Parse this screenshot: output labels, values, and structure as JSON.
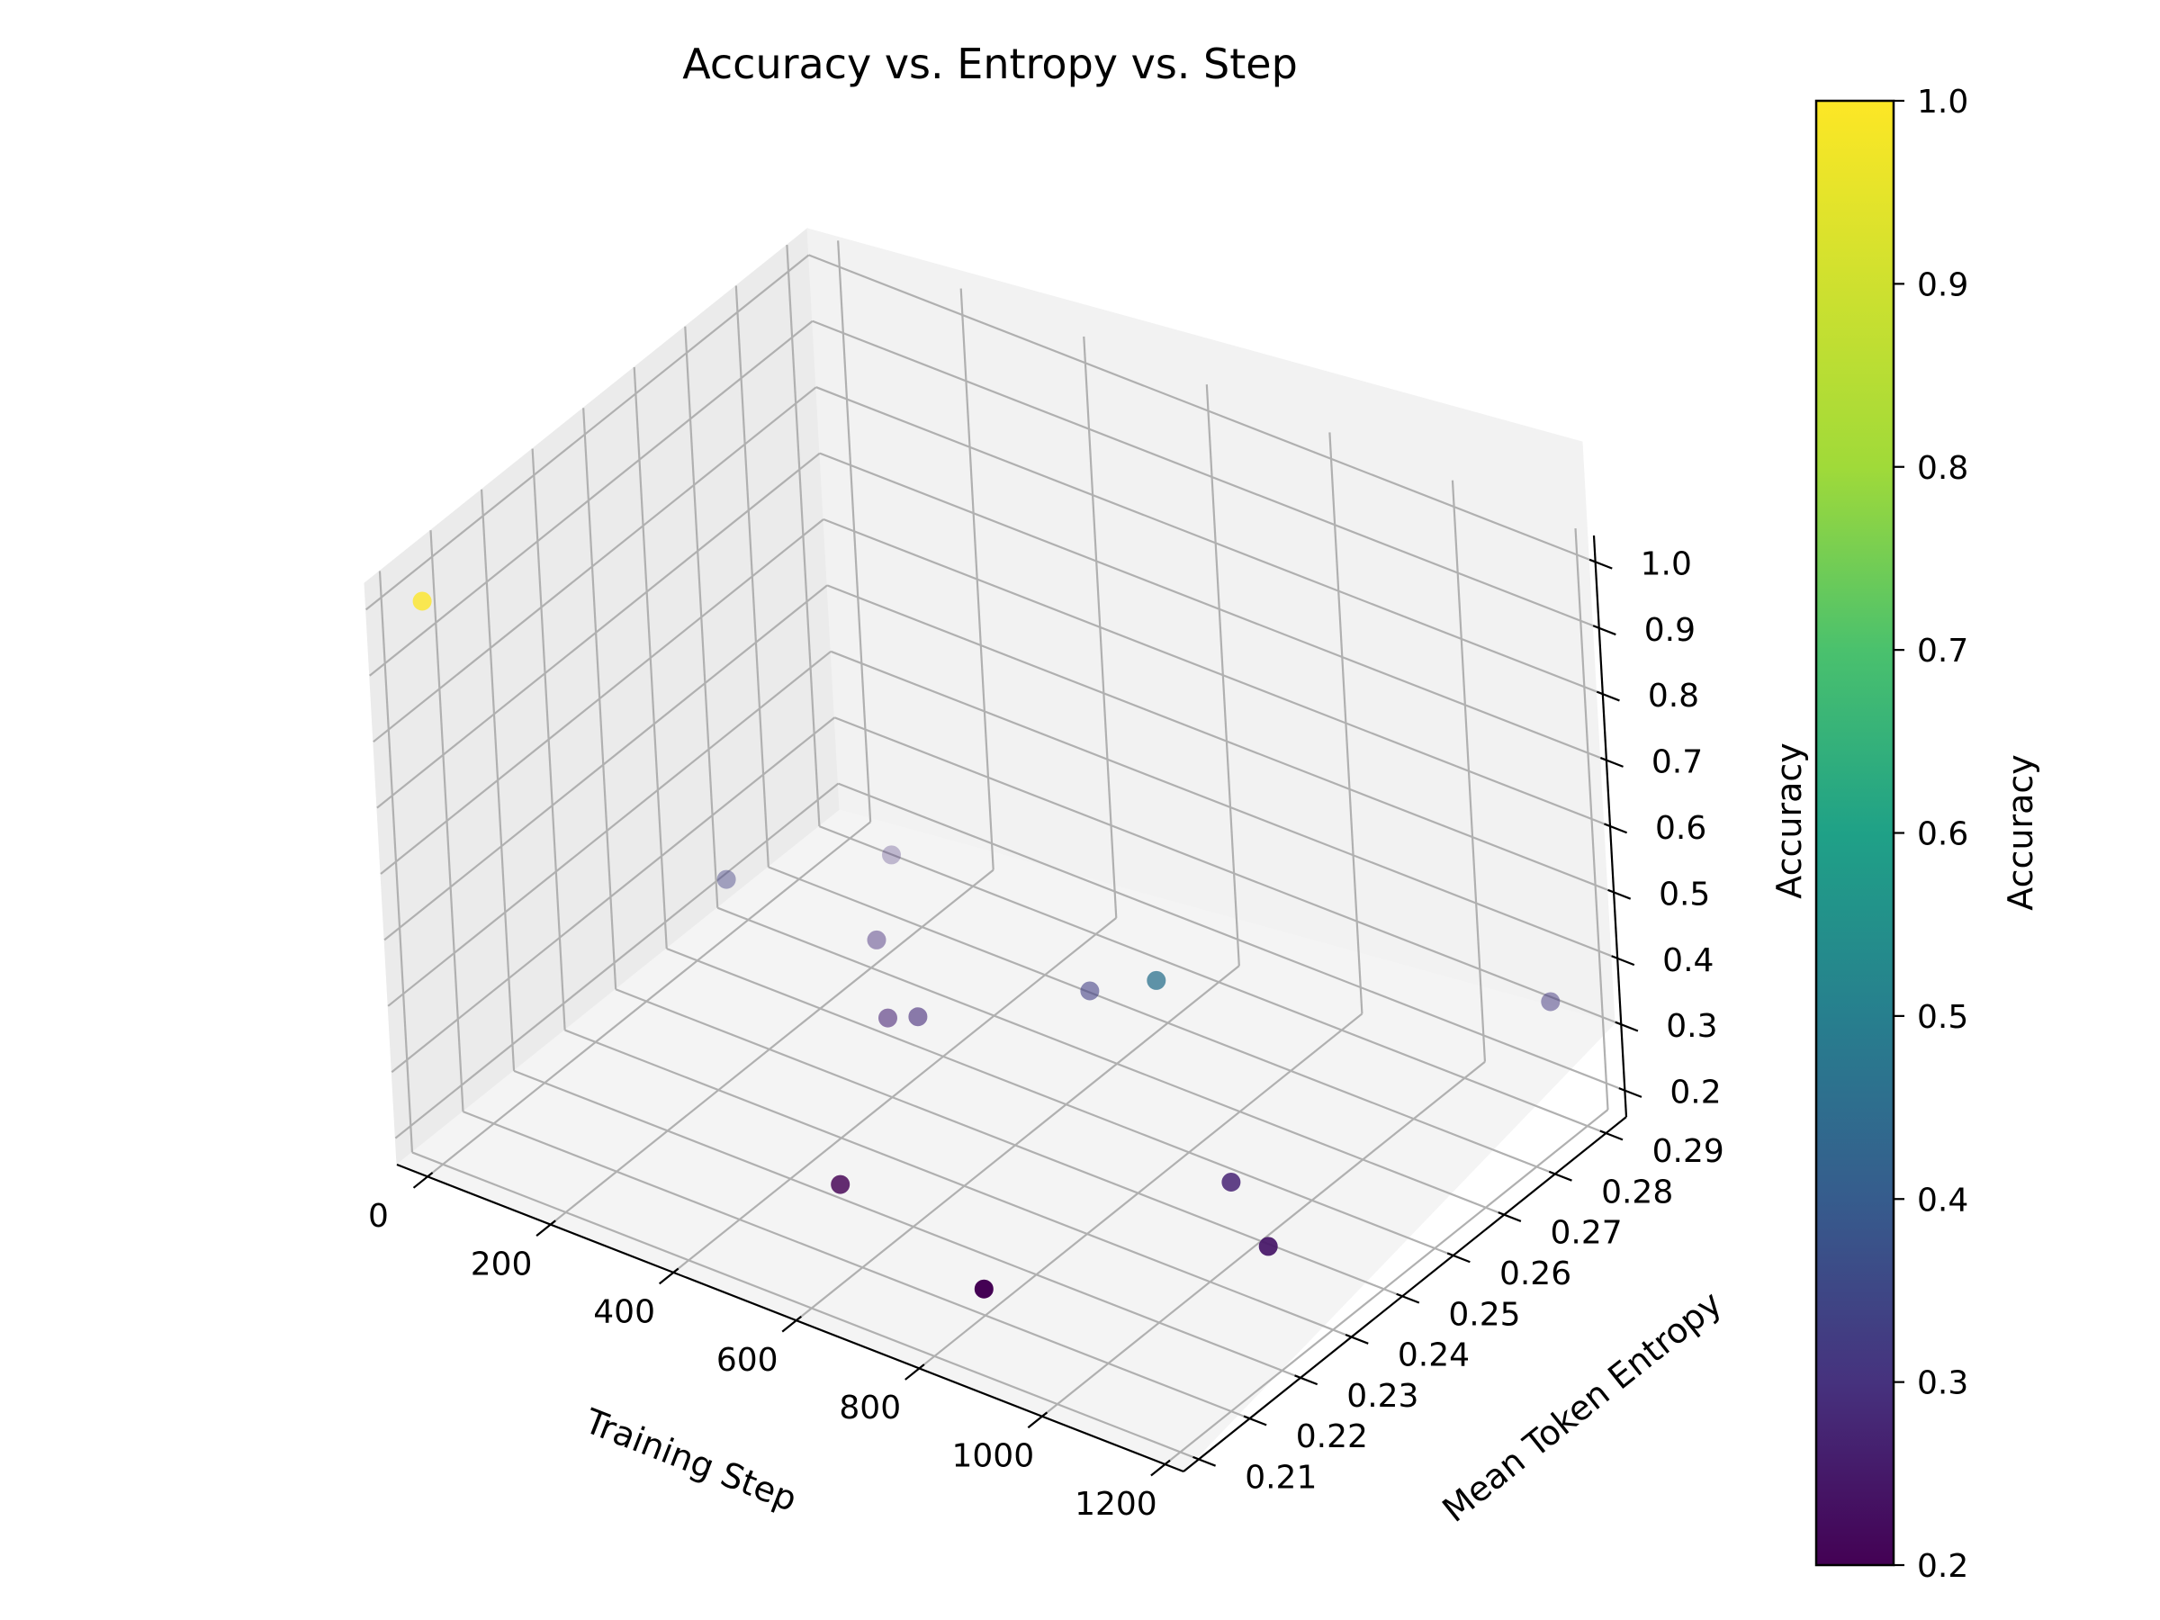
{
  "chart_data": {
    "type": "scatter",
    "projection": "3d",
    "title": "Accuracy vs. Entropy vs. Step",
    "xlabel": "Training Step",
    "ylabel": "Mean Token Entropy",
    "zlabel": "Accuracy",
    "xlim": [
      -50,
      1230
    ],
    "ylim": [
      0.207,
      0.294
    ],
    "zlim": [
      0.16,
      1.04
    ],
    "x_ticks": [
      "0",
      "200",
      "400",
      "600",
      "800",
      "1000",
      "1200"
    ],
    "y_ticks": [
      "0.21",
      "0.22",
      "0.23",
      "0.24",
      "0.25",
      "0.26",
      "0.27",
      "0.28",
      "0.29"
    ],
    "z_ticks": [
      "0.2",
      "0.3",
      "0.4",
      "0.5",
      "0.6",
      "0.7",
      "0.8",
      "0.9",
      "1.0"
    ],
    "grid": true,
    "colormap": "viridis",
    "colorbar": {
      "label": "Accuracy",
      "range": [
        0.2,
        1.0
      ],
      "ticks": [
        "0.2",
        "0.3",
        "0.4",
        "0.5",
        "0.6",
        "0.7",
        "0.8",
        "0.9",
        "1.0"
      ]
    },
    "points": [
      {
        "x": 0,
        "y": 0.212,
        "z": 1.0
      },
      {
        "x": 100,
        "y": 0.255,
        "z": 0.35
      },
      {
        "x": 200,
        "y": 0.275,
        "z": 0.3
      },
      {
        "x": 300,
        "y": 0.26,
        "z": 0.3
      },
      {
        "x": 400,
        "y": 0.25,
        "z": 0.28
      },
      {
        "x": 450,
        "y": 0.25,
        "z": 0.3
      },
      {
        "x": 500,
        "y": 0.228,
        "z": 0.2
      },
      {
        "x": 650,
        "y": 0.26,
        "z": 0.35
      },
      {
        "x": 800,
        "y": 0.22,
        "z": 0.2
      },
      {
        "x": 850,
        "y": 0.25,
        "z": 0.5
      },
      {
        "x": 1000,
        "y": 0.245,
        "z": 0.28
      },
      {
        "x": 1100,
        "y": 0.24,
        "z": 0.25
      },
      {
        "x": 1150,
        "y": 0.29,
        "z": 0.33
      }
    ]
  }
}
